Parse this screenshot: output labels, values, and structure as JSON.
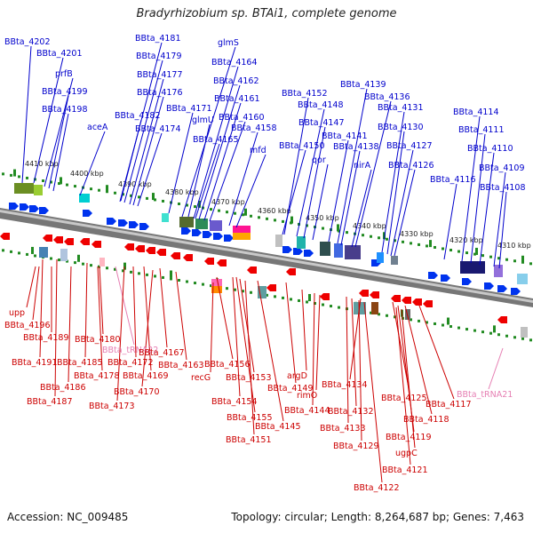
{
  "title": "Bradyrhizobium sp. BTAi1, complete genome",
  "footer": {
    "accession": "Accession: NC_009485",
    "summary": "Topology: circular; Length: 8,264,687 bp; Genes: 7,463"
  },
  "colors": {
    "top_label": "#0000cc",
    "bottom_label": "#cc0000",
    "trna_label": "#e67fb3",
    "forward_gene": "#0033ee",
    "reverse_gene": "#ee0000",
    "tick": "#228B22",
    "backbone": "#7a7a7a"
  },
  "ticks": [
    "4410 kbp",
    "4400 kbp",
    "4390 kbp",
    "4380 kbp",
    "4370 kbp",
    "4360 kbp",
    "4350 kbp",
    "4340 kbp",
    "4330 kbp",
    "4320 kbp",
    "4310 kbp"
  ],
  "top_labels": [
    "BBta_4202",
    "BBta_4201",
    "prfB",
    "BBta_4199",
    "BBta_4198",
    "aceA",
    "BBta_4181",
    "BBta_4179",
    "BBta_4177",
    "BBta_4176",
    "BBta_4182",
    "BBta_4174",
    "glmS",
    "BBta_4164",
    "BBta_4162",
    "BBta_4161",
    "BBta_4171",
    "glmU",
    "BBta_4160",
    "BBta_4165",
    "BBta_4158",
    "mfd",
    "BBta_4152",
    "BBta_4148",
    "BBta_4147",
    "BBta_4150",
    "qor",
    "BBta_4139",
    "BBta_4136",
    "BBta_4141",
    "BBta_4138",
    "nirA",
    "BBta_4131",
    "BBta_4130",
    "BBta_4127",
    "BBta_4126",
    "BBta_4114",
    "BBta_4111",
    "BBta_4110",
    "BBta_4109",
    "BBta_4116",
    "BBta_4108"
  ],
  "bottom_labels": [
    "upp",
    "BBta_4196",
    "BBta_4189",
    "BBta_4180",
    "BBta_tRNA22",
    "BBta_4191",
    "BBta_4185",
    "BBta_4172",
    "BBta_4167",
    "BBta_4163",
    "BBta_4156",
    "BBta_4178",
    "BBta_4169",
    "recG",
    "BBta_4186",
    "BBta_4170",
    "BBta_4187",
    "BBta_4173",
    "BBta_4153",
    "BBta_4149",
    "argD",
    "BBta_4154",
    "BBta_4144",
    "rimO",
    "BBta_4155",
    "BBta_4145",
    "BBta_4151",
    "BBta_4134",
    "BBta_4125",
    "BBta_4117",
    "BBta_4132",
    "BBta_4118",
    "BBta_4133",
    "BBta_4119",
    "BBta_4129",
    "ugpC",
    "BBta_4121",
    "BBta_4122",
    "BBta_tRNA21"
  ]
}
